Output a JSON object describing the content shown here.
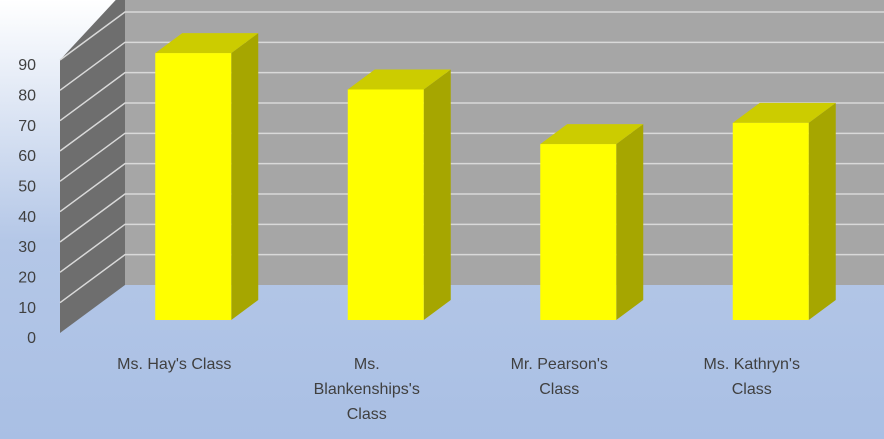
{
  "chart_data": {
    "type": "bar3d",
    "categories": [
      "Ms. Hay's Class",
      "Ms. Blankenships's Class",
      "Mr. Pearson's Class",
      "Ms. Kathryn's Class"
    ],
    "values": [
      88,
      76,
      58,
      65
    ],
    "color": "#ffff00",
    "ylim": [
      0,
      90
    ],
    "yticks": [
      0,
      10,
      20,
      30,
      40,
      50,
      60,
      70,
      80,
      90
    ],
    "grid": true
  }
}
